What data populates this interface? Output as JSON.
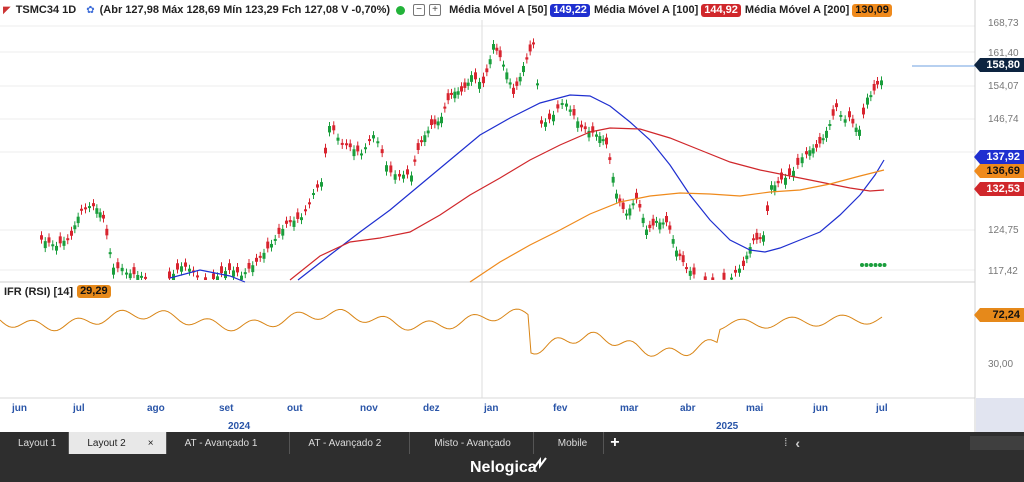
{
  "header": {
    "ticker": "TSMC34 1D",
    "ohlc": "(Abr 127,98 Máx 128,69 Mín 123,29 Fch 127,08 V -0,70%)",
    "ma50_label": "Média Móvel A [50]",
    "ma50_value": "149,22",
    "ma100_label": "Média Móvel A [100]",
    "ma100_value": "144,92",
    "ma200_label": "Média Móvel A [200]",
    "ma200_value": "130,09",
    "plus_label": "+"
  },
  "rsi": {
    "label": "IFR (RSI) [14]",
    "value": "29,29",
    "axis_value": "72,24",
    "axis_tick": "30,00"
  },
  "price_axis": {
    "ticks": [
      "168,73",
      "161,40",
      "154,07",
      "146,74",
      "124,75",
      "117,42"
    ],
    "last_price": "158,80",
    "tag_ma_blue": "137,92",
    "tag_ma_orange": "136,69",
    "tag_ma_red": "132,53"
  },
  "time_axis": {
    "months": [
      "jun",
      "jul",
      "ago",
      "set",
      "out",
      "nov",
      "dez",
      "jan",
      "fev",
      "mar",
      "abr",
      "mai",
      "jun",
      "jul"
    ],
    "years": [
      "2024",
      "2025"
    ]
  },
  "colors": {
    "ma50": "#1f2fd0",
    "ma100": "#d0272b",
    "ma200": "#ef8a1c",
    "rsi": "#d98516",
    "up": "#1a9e3c",
    "down": "#d8242f",
    "last_price_tag": "#0d2440"
  },
  "tabs": [
    {
      "label": "Layout 1",
      "active": false
    },
    {
      "label": "Layout 2",
      "active": true,
      "close": "×"
    },
    {
      "label": "AT - Avançado 1",
      "active": false
    },
    {
      "label": "AT - Avançado 2",
      "active": false
    },
    {
      "label": "Misto - Avançado",
      "active": false
    },
    {
      "label": "Mobile",
      "active": false
    }
  ],
  "tabbar_right": {
    "left_arrow": "‹",
    "separator": "⁞"
  },
  "footer": {
    "brand": "Nelogica"
  },
  "icons": [
    "chart-type-icon",
    "settings-icon",
    "status-dot-icon",
    "minus-icon",
    "plus-icon",
    "nelogica-logo-icon"
  ]
}
